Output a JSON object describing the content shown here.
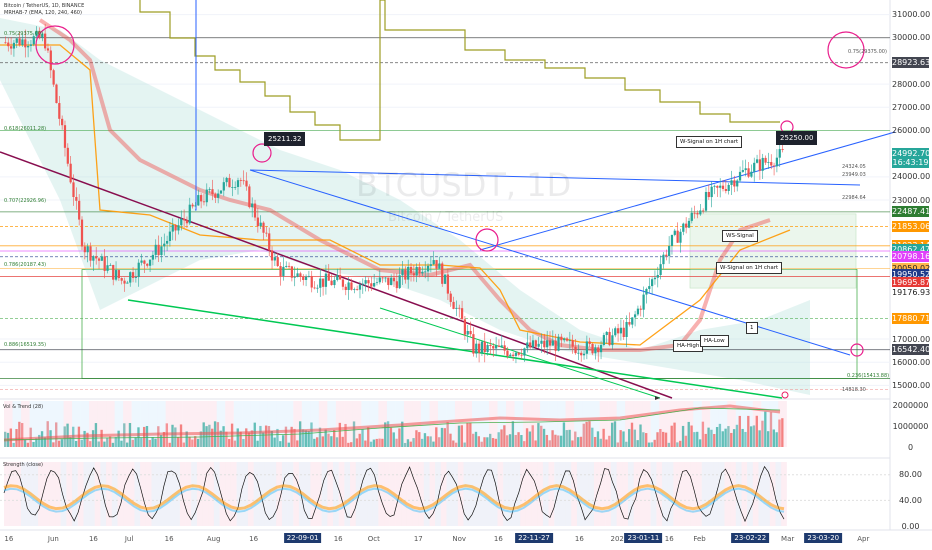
{
  "header": {
    "symbol_line": "Bitcoin / TetherUS, 1D, BINANCE",
    "indicator_line": "MRHAB-7 (EMA, 120, 240, 460)",
    "watermark_symbol": "BTCUSDT, 1D",
    "watermark_name": "Bitcoin / TetherUS"
  },
  "panes": {
    "volume_title": "Vol & Trend (28)",
    "strength_title": "Strength (close)"
  },
  "annotations": {
    "high_left": "25211.32",
    "high_right": "25250.00",
    "signal_1h_top": "W-Signal on 1H chart",
    "signal_1h_bottom": "W-Signal on 1H chart",
    "ws_signal": "WS-Signal",
    "ha_high": "HA-High",
    "ha_low": "HA-Low",
    "mark_1": "1",
    "right_top_label": "0.75(29375.00)",
    "fib_0": "0.75(29375.00)",
    "fib_1": "0.618(26011.28)",
    "fib_2": "0.707(22926.96)",
    "fib_3": "0.786(20187.43)",
    "fib_4": "0.886(16519.35)",
    "fib_5": "0.236(15413.88)",
    "level_a": "24324.05",
    "level_b": "23949.03",
    "level_c": "22984.64",
    "level_d": "14818.30"
  },
  "price_axis": {
    "ticks": [
      {
        "label": "31000.00",
        "value": 31000
      },
      {
        "label": "30000.00",
        "value": 30000
      },
      {
        "label": "28923.63",
        "value": 28923.63,
        "bg": "#434651",
        "fg": "#ffffff"
      },
      {
        "label": "28000.00",
        "value": 28000
      },
      {
        "label": "27000.00",
        "value": 27000
      },
      {
        "label": "26000.00",
        "value": 26000
      },
      {
        "label": "24992.70",
        "value": 24992.7,
        "bg": "#26a69a",
        "fg": "#ffffff"
      },
      {
        "label": "16:43:19",
        "value": 24620,
        "bg": "#26a69a",
        "fg": "#ffffff"
      },
      {
        "label": "24000.00",
        "value": 24000
      },
      {
        "label": "23000.00",
        "value": 23000
      },
      {
        "label": "22487.41",
        "value": 22487.41,
        "bg": "#2e7d32",
        "fg": "#ffffff"
      },
      {
        "label": "21853.06",
        "value": 21853.06,
        "bg": "#ff9800",
        "fg": "#ffffff"
      },
      {
        "label": "21023.14",
        "value": 21023.14,
        "bg": "#ff9800",
        "fg": "#ffffff"
      },
      {
        "label": "20862.47",
        "value": 20862.47,
        "bg": "#26a69a",
        "fg": "#ffffff"
      },
      {
        "label": "20798.16",
        "value": 20560,
        "bg": "#e040fb",
        "fg": "#ffffff"
      },
      {
        "label": "20050.02",
        "value": 20050.02,
        "bg": "#ffb74d",
        "fg": "#222222"
      },
      {
        "label": "19950.52",
        "value": 19780,
        "bg": "#1e3a8a",
        "fg": "#ffffff"
      },
      {
        "label": "19695.87",
        "value": 19460,
        "bg": "#e53935",
        "fg": "#ffffff"
      },
      {
        "label": "19176.93",
        "value": 19000,
        "bg": "#ffffff",
        "fg": "#222222"
      },
      {
        "label": "17880.71",
        "value": 17880.71,
        "bg": "#ff9800",
        "fg": "#ffffff"
      },
      {
        "label": "17000.00",
        "value": 17000
      },
      {
        "label": "16542.40",
        "value": 16542.4,
        "bg": "#434651",
        "fg": "#ffffff"
      },
      {
        "label": "16000.00",
        "value": 16000
      },
      {
        "label": "15000.00",
        "value": 15000
      }
    ],
    "volume_ticks": [
      {
        "label": "2000000",
        "value": 2000000
      },
      {
        "label": "1000000",
        "value": 1000000
      },
      {
        "label": "0",
        "value": 0
      }
    ],
    "strength_ticks": [
      {
        "label": "80.00",
        "value": 80
      },
      {
        "label": "40.00",
        "value": 40
      },
      {
        "label": "0.00",
        "value": 0
      }
    ]
  },
  "time_axis": [
    {
      "label": "16",
      "pos": 0.01
    },
    {
      "label": "Jun",
      "pos": 0.06
    },
    {
      "label": "16",
      "pos": 0.105
    },
    {
      "label": "Jul",
      "pos": 0.145
    },
    {
      "label": "16",
      "pos": 0.19
    },
    {
      "label": "Aug",
      "pos": 0.24
    },
    {
      "label": "16",
      "pos": 0.285
    },
    {
      "label": "22-09-01",
      "pos": 0.34,
      "boxed": true
    },
    {
      "label": "16",
      "pos": 0.38
    },
    {
      "label": "Oct",
      "pos": 0.42
    },
    {
      "label": "17",
      "pos": 0.47
    },
    {
      "label": "Nov",
      "pos": 0.516
    },
    {
      "label": "16",
      "pos": 0.56
    },
    {
      "label": "22-11-27",
      "pos": 0.6,
      "boxed": true
    },
    {
      "label": "16",
      "pos": 0.651
    },
    {
      "label": "2023",
      "pos": 0.696
    },
    {
      "label": "23-01-11",
      "pos": 0.723,
      "boxed": true
    },
    {
      "label": "16",
      "pos": 0.752
    },
    {
      "label": "Feb",
      "pos": 0.786
    },
    {
      "label": "16",
      "pos": 0.827
    },
    {
      "label": "23-02-22",
      "pos": 0.843,
      "boxed": true
    },
    {
      "label": "Mar",
      "pos": 0.885
    },
    {
      "label": "23-03-20",
      "pos": 0.925,
      "boxed": true
    },
    {
      "label": "Apr",
      "pos": 0.97
    }
  ],
  "colors": {
    "up": "#26a69a",
    "down": "#ef5350",
    "channel": "#2962ff",
    "support": "#00c853",
    "resistance": "#880e4f",
    "step_line": "#9e9d24",
    "cloud": "#b2dfdb",
    "highlight_circle": "#e91e8c"
  },
  "chart_data": {
    "type": "candlestick",
    "title": "BTCUSDT, 1D",
    "ylim": [
      14500,
      31500
    ],
    "close_series_approx": [
      {
        "x": "May 16",
        "close": 29800
      },
      {
        "x": "Jun 01",
        "close": 30000
      },
      {
        "x": "Jun 16",
        "close": 21000
      },
      {
        "x": "Jul 01",
        "close": 19500
      },
      {
        "x": "Jul 16",
        "close": 21000
      },
      {
        "x": "Aug 01",
        "close": 23000
      },
      {
        "x": "Aug 16",
        "close": 24000
      },
      {
        "x": "Sep 01",
        "close": 20000
      },
      {
        "x": "Sep 16",
        "close": 19500
      },
      {
        "x": "Oct 01",
        "close": 19400
      },
      {
        "x": "Oct 17",
        "close": 19500
      },
      {
        "x": "Nov 01",
        "close": 20500
      },
      {
        "x": "Nov 16",
        "close": 16600
      },
      {
        "x": "Nov 27",
        "close": 16500
      },
      {
        "x": "Dec 16",
        "close": 16800
      },
      {
        "x": "2023 Jan 01",
        "close": 16600
      },
      {
        "x": "Jan 11",
        "close": 17500
      },
      {
        "x": "Jan 16",
        "close": 21000
      },
      {
        "x": "Feb 01",
        "close": 23100
      },
      {
        "x": "Feb 16",
        "close": 24300
      },
      {
        "x": "Feb 22",
        "close": 24992.7
      }
    ]
  }
}
